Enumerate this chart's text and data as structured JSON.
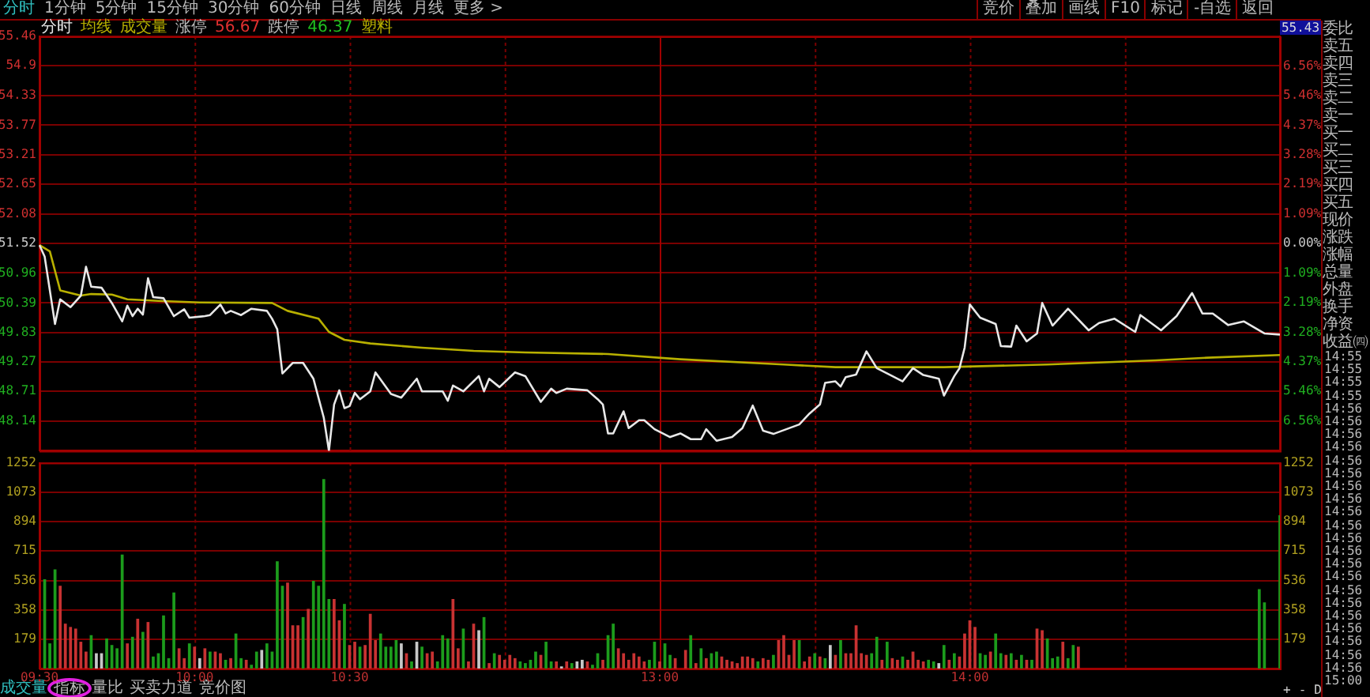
{
  "chart_data": [
    {
      "type": "line",
      "categories": [
        null,
        null,
        null,
        null,
        null,
        null,
        null,
        null,
        null,
        null,
        null,
        null,
        null,
        null,
        null,
        null,
        null,
        null,
        null,
        null,
        null,
        null,
        null,
        null,
        null,
        null,
        null,
        null,
        null,
        null,
        null,
        null,
        null,
        null,
        null,
        null,
        null,
        null,
        null,
        null,
        null,
        null,
        null,
        null,
        null,
        null,
        null,
        null,
        null,
        null,
        null,
        null,
        null,
        null,
        null,
        null,
        null,
        null,
        null,
        null,
        null,
        null,
        null,
        null,
        null,
        null,
        null,
        null,
        null,
        null,
        null,
        null,
        null,
        null,
        null,
        null,
        null,
        null,
        null,
        null,
        null,
        null,
        null,
        null,
        null,
        null,
        null,
        null,
        null,
        null,
        null,
        null,
        null,
        null,
        null,
        null,
        null,
        null,
        null,
        null,
        null,
        null,
        null,
        null,
        null,
        null,
        null,
        null,
        null,
        null,
        null,
        null,
        null,
        null,
        null,
        null,
        null,
        null,
        null,
        null,
        null,
        null,
        null,
        null,
        null,
        null,
        null,
        null,
        null,
        null,
        null,
        null,
        null,
        null,
        null,
        null,
        null,
        null,
        null,
        null,
        null,
        null,
        null,
        null,
        null,
        null,
        null,
        null,
        null,
        null,
        null,
        null,
        null,
        null,
        null,
        null,
        null,
        null,
        null,
        null,
        null,
        null,
        null,
        null,
        null,
        null,
        null,
        null,
        null,
        null,
        null,
        null,
        null,
        null,
        null,
        null,
        null,
        null,
        null,
        null,
        null,
        null,
        null,
        null,
        null,
        null,
        null,
        null,
        null,
        null,
        null,
        null,
        null,
        null,
        null,
        null,
        null,
        null,
        null,
        null,
        null,
        null,
        null,
        null,
        null,
        null,
        null,
        null,
        null,
        null,
        null,
        null,
        null,
        null,
        null,
        null,
        null,
        null,
        null,
        null,
        null,
        null,
        null,
        null,
        null,
        null,
        null,
        null,
        null,
        null,
        null,
        null,
        null,
        null,
        null,
        null,
        null,
        null,
        null,
        null,
        null
      ],
      "ylim": [
        47.58,
        55.46
      ],
      "yticks": [
        48.14,
        48.71,
        49.27,
        49.83,
        50.39,
        50.96,
        51.52,
        52.08,
        52.65,
        53.21,
        53.77,
        54.33,
        54.9,
        55.46
      ],
      "y2lim": [
        -7.65,
        7.65
      ],
      "y2ticks": [
        {
          "value": -6.56,
          "label": "6.56%"
        },
        {
          "value": -5.46,
          "label": "5.46%"
        },
        {
          "value": -4.37,
          "label": "4.37%"
        },
        {
          "value": -3.28,
          "label": "3.28%"
        },
        {
          "value": -2.19,
          "label": "2.19%"
        },
        {
          "value": -1.09,
          "label": "1.09%"
        },
        {
          "value": 0,
          "label": "0.00%"
        },
        {
          "value": 1.09,
          "label": "1.09%"
        },
        {
          "value": 2.19,
          "label": "2.19%"
        },
        {
          "value": 3.28,
          "label": "3.28%"
        },
        {
          "value": 4.37,
          "label": "4.37%"
        },
        {
          "value": 5.46,
          "label": "5.46%"
        },
        {
          "value": 6.56,
          "label": "6.56%"
        }
      ],
      "tick_labels": "y",
      "grid": true,
      "legend": "top left",
      "series": [
        {
          "name": "分时",
          "color": "#e8e8e8",
          "values": [
            51.49,
            51.27,
            null,
            49.99,
            50.46,
            null,
            50.31,
            null,
            50.53,
            51.08,
            50.7,
            null,
            50.68,
            null,
            50.39,
            null,
            50.04,
            50.34,
            50.14,
            50.28,
            50.17,
            50.86,
            50.5,
            null,
            50.48,
            null,
            50.14,
            null,
            50.27,
            50.11,
            null,
            null,
            50.14,
            50.16,
            null,
            50.36,
            50.19,
            50.24,
            null,
            50.16,
            null,
            50.28,
            null,
            null,
            50.24,
            50.09,
            49.89,
            49.05,
            null,
            49.25,
            null,
            49.25,
            null,
            48.95,
            null,
            48.21,
            47.58,
            48.46,
            48.73,
            48.39,
            48.43,
            48.68,
            48.56,
            null,
            48.71,
            49.07,
            null,
            null,
            48.66,
            null,
            48.59,
            null,
            null,
            48.95,
            48.71,
            null,
            null,
            null,
            48.71,
            48.53,
            48.82,
            null,
            48.71,
            null,
            null,
            49.0,
            48.71,
            48.95,
            null,
            48.79,
            null,
            null,
            49.07,
            null,
            49.0,
            null,
            null,
            48.51,
            null,
            48.76,
            48.68,
            null,
            48.76,
            null,
            null,
            null,
            48.73,
            null,
            48.56,
            48.46,
            47.91,
            47.91,
            null,
            48.33,
            48.01,
            null,
            48.16,
            48.16,
            null,
            47.99,
            null,
            null,
            47.84,
            null,
            47.91,
            null,
            47.8,
            null,
            47.8,
            47.99,
            null,
            47.77,
            null,
            null,
            47.84,
            null,
            48.01,
            null,
            48.44,
            null,
            47.96,
            null,
            47.9,
            null,
            null,
            null,
            null,
            48.08,
            null,
            48.29,
            null,
            48.46,
            48.87,
            null,
            48.9,
            48.8,
            48.98,
            null,
            49.03,
            null,
            49.47,
            null,
            49.15,
            null,
            null,
            49.0,
            null,
            48.9,
            null,
            49.15,
            null,
            49.02,
            null,
            null,
            48.95,
            48.63,
            null,
            49.0,
            49.15,
            49.54,
            50.36,
            null,
            50.11,
            null,
            null,
            49.99,
            49.57,
            null,
            49.56,
            49.96,
            null,
            49.66,
            null,
            49.81,
            50.39,
            null,
            49.96,
            null,
            null,
            50.28,
            null,
            null,
            null,
            49.87,
            null,
            50.01,
            null,
            null,
            50.09,
            null,
            null,
            null,
            49.84,
            50.16,
            null,
            null,
            null,
            49.87,
            null,
            null,
            50.14,
            null,
            null,
            50.58,
            null,
            50.19,
            null,
            50.19,
            null,
            null,
            49.97,
            null,
            null,
            50.04,
            null,
            null,
            null,
            49.81,
            null,
            null,
            49.79
          ]
        },
        {
          "name": "均线",
          "color": "#b8b000",
          "values": [
            51.49,
            null,
            51.37,
            null,
            50.63,
            null,
            null,
            null,
            50.53,
            null,
            50.56,
            null,
            null,
            null,
            50.55,
            null,
            null,
            50.46,
            null,
            null,
            null,
            null,
            null,
            50.43,
            null,
            null,
            null,
            null,
            null,
            null,
            null,
            50.4,
            null,
            null,
            null,
            null,
            null,
            null,
            null,
            null,
            null,
            null,
            null,
            null,
            null,
            50.39,
            null,
            null,
            50.24,
            null,
            null,
            null,
            null,
            null,
            50.09,
            null,
            49.84,
            null,
            null,
            49.69,
            null,
            null,
            null,
            null,
            49.62,
            null,
            null,
            null,
            null,
            null,
            null,
            null,
            null,
            null,
            49.54,
            null,
            null,
            null,
            null,
            null,
            null,
            null,
            null,
            null,
            49.48,
            null,
            null,
            null,
            null,
            null,
            null,
            null,
            null,
            null,
            49.45,
            null,
            null,
            null,
            null,
            null,
            null,
            null,
            null,
            null,
            null,
            null,
            null,
            null,
            null,
            null,
            49.42,
            null,
            null,
            null,
            null,
            null,
            null,
            null,
            null,
            null,
            null,
            null,
            null,
            null,
            49.32,
            null,
            null,
            null,
            null,
            null,
            null,
            null,
            null,
            null,
            null,
            null,
            null,
            null,
            null,
            null,
            null,
            null,
            null,
            null,
            49.22,
            null,
            null,
            null,
            null,
            null,
            null,
            null,
            null,
            null,
            49.17,
            null,
            null,
            null,
            null,
            null,
            null,
            null,
            null,
            null,
            null,
            null,
            null,
            null,
            null,
            null,
            null,
            null,
            null,
            null,
            null,
            49.17,
            null,
            null,
            null,
            null,
            null,
            null,
            null,
            null,
            null,
            null,
            null,
            null,
            null,
            null,
            null,
            null,
            null,
            null,
            null,
            49.22,
            null,
            null,
            null,
            null,
            null,
            null,
            null,
            null,
            null,
            null,
            null,
            null,
            null,
            null,
            null,
            null,
            null,
            null,
            null,
            null,
            49.3,
            null,
            null,
            null,
            null,
            null,
            null,
            null,
            null,
            null,
            49.35,
            null,
            null,
            null,
            null,
            null,
            null,
            null,
            null,
            null,
            null,
            null,
            null,
            null,
            49.4
          ]
        }
      ],
      "annotations": [
        "分时",
        "1分钟",
        "5分钟",
        "15分钟",
        "30分钟",
        "60分钟",
        "日线",
        "周线",
        "月线",
        "更多 >",
        "竞价",
        "叠加",
        "画线",
        "F10",
        "标记",
        "-自选",
        "返回",
        "成交量",
        "涨停",
        "56.67",
        "跌停",
        "46.37",
        "塑料",
        "55.43",
        "委比",
        "卖五",
        "卖四",
        "卖三",
        "卖二",
        "卖一",
        "买一",
        "买二",
        "买三",
        "买四",
        "买五",
        "现价",
        "涨跌",
        "涨幅",
        "总量",
        "外盘",
        "换手",
        "净资",
        "收益㈣",
        "14:55",
        "14:55",
        "14:55",
        "14:55",
        "14:56",
        "14:56",
        "14:56",
        "14:56",
        "14:56",
        "14:56",
        "14:56",
        "14:56",
        "14:56",
        "14:56",
        "14:56",
        "14:56",
        "14:56",
        "14:56",
        "14:56",
        "14:56",
        "14:56",
        "14:56",
        "14:56",
        "14:56",
        "14:56",
        "15:00",
        "成交量",
        "指标",
        "量比",
        "买卖力道",
        "竞价图",
        "+",
        "-",
        "D"
      ]
    },
    {
      "type": "bar",
      "categories": [
        "09:30",
        null,
        null,
        null,
        null,
        null,
        null,
        null,
        null,
        null,
        null,
        null,
        null,
        null,
        null,
        null,
        null,
        null,
        null,
        null,
        null,
        null,
        null,
        null,
        null,
        null,
        null,
        null,
        null,
        null,
        "10:00",
        null,
        null,
        null,
        null,
        null,
        null,
        null,
        null,
        null,
        null,
        null,
        null,
        null,
        null,
        null,
        null,
        null,
        null,
        null,
        null,
        null,
        null,
        null,
        null,
        null,
        null,
        null,
        null,
        null,
        "10:30",
        null,
        null,
        null,
        null,
        null,
        null,
        null,
        null,
        null,
        null,
        null,
        null,
        null,
        null,
        null,
        null,
        null,
        null,
        null,
        null,
        null,
        null,
        null,
        null,
        null,
        null,
        null,
        null,
        null,
        null,
        null,
        null,
        null,
        null,
        null,
        null,
        null,
        null,
        null,
        null,
        null,
        null,
        null,
        null,
        null,
        null,
        null,
        null,
        null,
        null,
        null,
        null,
        null,
        null,
        null,
        null,
        null,
        null,
        null,
        "13:00",
        null,
        null,
        null,
        null,
        null,
        null,
        null,
        null,
        null,
        null,
        null,
        null,
        null,
        null,
        null,
        null,
        null,
        null,
        null,
        null,
        null,
        null,
        null,
        null,
        null,
        null,
        null,
        null,
        null,
        null,
        null,
        null,
        null,
        null,
        null,
        null,
        null,
        null,
        null,
        null,
        null,
        null,
        null,
        null,
        null,
        null,
        null,
        null,
        null,
        null,
        null,
        null,
        null,
        null,
        null,
        null,
        null,
        null,
        null,
        "14:00",
        null,
        null,
        null,
        null,
        null,
        null,
        null,
        null,
        null,
        null,
        null,
        null,
        null,
        null,
        null,
        null,
        null,
        null,
        null,
        null,
        null,
        null,
        null,
        null,
        null,
        null,
        null,
        null,
        null,
        null,
        null,
        null,
        null,
        null,
        null,
        null,
        null,
        null,
        null,
        null,
        null,
        null,
        null,
        null,
        null,
        null,
        null,
        null,
        null,
        null,
        null,
        null,
        null,
        null,
        null,
        null,
        null,
        null,
        null,
        null
      ],
      "ylim": [
        0,
        1252
      ],
      "yticks": [
        179,
        358,
        536,
        715,
        894,
        1073,
        1252
      ],
      "y2lim": [
        0,
        1252
      ],
      "y2ticks": [
        179,
        358,
        536,
        715,
        894,
        1073,
        1252
      ],
      "grid": true,
      "values": [
        null,
        540,
        150,
        600,
        500,
        270,
        250,
        240,
        160,
        100,
        200,
        90,
        90,
        180,
        140,
        120,
        690,
        150,
        190,
        300,
        220,
        280,
        70,
        90,
        320,
        60,
        460,
        120,
        60,
        150,
        130,
        60,
        120,
        100,
        100,
        90,
        50,
        60,
        210,
        60,
        50,
        20,
        100,
        110,
        150,
        100,
        650,
        500,
        520,
        260,
        260,
        310,
        360,
        530,
        500,
        1150,
        420,
        420,
        290,
        390,
        140,
        160,
        130,
        140,
        330,
        170,
        210,
        130,
        130,
        170,
        150,
        90,
        40,
        160,
        130,
        90,
        100,
        40,
        200,
        180,
        420,
        120,
        240,
        40,
        270,
        230,
        310,
        30,
        90,
        80,
        50,
        80,
        60,
        40,
        30,
        50,
        100,
        80,
        160,
        40,
        40,
        10,
        40,
        30,
        40,
        50,
        40,
        20,
        90,
        50,
        200,
        270,
        120,
        90,
        50,
        90,
        70,
        40,
        50,
        160,
        40,
        150,
        80,
        60,
        null,
        110,
        200,
        30,
        120,
        60,
        90,
        100,
        70,
        50,
        40,
        30,
        70,
        70,
        60,
        40,
        60,
        50,
        80,
        170,
        200,
        80,
        170,
        170,
        40,
        70,
        90,
        70,
        60,
        140,
        80,
        170,
        90,
        90,
        260,
        90,
        80,
        90,
        190,
        50,
        160,
        60,
        50,
        70,
        50,
        100,
        50,
        40,
        50,
        40,
        30,
        140,
        50,
        90,
        70,
        210,
        290,
        250,
        90,
        80,
        100,
        210,
        90,
        80,
        90,
        50,
        80,
        50,
        50,
        240,
        230,
        180,
        60,
        70,
        160,
        60,
        140,
        130,
        null,
        null,
        null,
        null,
        null,
        null,
        null,
        null,
        null,
        null,
        null,
        null,
        null,
        null,
        null,
        null,
        null,
        null,
        null,
        null,
        null,
        null,
        null,
        null,
        null,
        null,
        null,
        null,
        null,
        null,
        null,
        null,
        null,
        null,
        480,
        400,
        null,
        null,
        930
      ],
      "colors": [
        null,
        "#1c9c1c",
        "#1c9c1c",
        "#1c9c1c",
        "#c83232",
        "#c83232",
        "#c83232",
        "#c83232",
        "#c83232",
        "#c83232",
        "#1c9c1c",
        "#c8c8c8",
        "#c8c8c8",
        "#1c9c1c",
        "#1c9c1c",
        "#1c9c1c",
        "#1c9c1c",
        "#c83232",
        "#1c9c1c",
        "#c83232",
        "#1c9c1c",
        "#c83232",
        "#1c9c1c",
        "#1c9c1c",
        "#1c9c1c",
        "#1c9c1c",
        "#1c9c1c",
        "#c83232",
        "#c83232",
        "#1c9c1c",
        "#c83232",
        "#c8c8c8",
        "#c83232",
        "#1c9c1c",
        "#c83232",
        "#c83232",
        "#1c9c1c",
        "#c83232",
        "#1c9c1c",
        "#1c9c1c",
        "#c83232",
        "#1c9c1c",
        "#1c9c1c",
        "#c8c8c8",
        "#1c9c1c",
        "#1c9c1c",
        "#1c9c1c",
        "#1c9c1c",
        "#c83232",
        "#c83232",
        "#c83232",
        "#1c9c1c",
        "#c83232",
        "#1c9c1c",
        "#1c9c1c",
        "#1c9c1c",
        "#1c9c1c",
        "#c83232",
        "#c83232",
        "#1c9c1c",
        "#c83232",
        "#c83232",
        "#1c9c1c",
        "#c83232",
        "#c83232",
        "#c83232",
        "#1c9c1c",
        "#1c9c1c",
        "#1c9c1c",
        "#1c9c1c",
        "#c8c8c8",
        "#c83232",
        "#1c9c1c",
        "#c8c8c8",
        "#1c9c1c",
        "#c83232",
        "#c83232",
        "#1c9c1c",
        "#1c9c1c",
        "#1c9c1c",
        "#c83232",
        "#c83232",
        "#1c9c1c",
        "#c83232",
        "#c83232",
        "#c8c8c8",
        "#1c9c1c",
        "#c83232",
        "#1c9c1c",
        "#c83232",
        "#c83232",
        "#c83232",
        "#c83232",
        "#1c9c1c",
        "#1c9c1c",
        "#1c9c1c",
        "#1c9c1c",
        "#c83232",
        "#1c9c1c",
        "#1c9c1c",
        "#c83232",
        "#c8c8c8",
        "#c83232",
        "#1c9c1c",
        "#c8c8c8",
        "#c8c8c8",
        "#c83232",
        "#1c9c1c",
        "#1c9c1c",
        "#c83232",
        "#1c9c1c",
        "#1c9c1c",
        "#c83232",
        "#c83232",
        "#c83232",
        "#c83232",
        "#c83232",
        "#c83232",
        "#1c9c1c",
        "#1c9c1c",
        "#c83232",
        "#1c9c1c",
        "#1c9c1c",
        "#c83232",
        null,
        "#c83232",
        "#1c9c1c",
        "#c83232",
        "#1c9c1c",
        "#c83232",
        "#1c9c1c",
        "#1c9c1c",
        "#c83232",
        "#c83232",
        "#c83232",
        "#c83232",
        "#c83232",
        "#c83232",
        "#c83232",
        "#1c9c1c",
        "#c83232",
        "#c83232",
        "#1c9c1c",
        "#c83232",
        "#c83232",
        "#c83232",
        "#c83232",
        "#1c9c1c",
        "#c83232",
        "#c83232",
        "#1c9c1c",
        "#c83232",
        "#1c9c1c",
        "#c8c8c8",
        "#c83232",
        "#1c9c1c",
        "#c83232",
        "#c83232",
        "#c83232",
        "#c83232",
        "#c83232",
        "#1c9c1c",
        "#1c9c1c",
        "#c83232",
        "#1c9c1c",
        "#c83232",
        "#c83232",
        "#1c9c1c",
        "#c83232",
        "#c83232",
        "#c83232",
        "#c83232",
        "#1c9c1c",
        "#1c9c1c",
        "#c8c8c8",
        "#1c9c1c",
        "#c83232",
        "#1c9c1c",
        "#c83232",
        "#c83232",
        "#c83232",
        "#c83232",
        "#1c9c1c",
        "#1c9c1c",
        "#c83232",
        "#1c9c1c",
        "#1c9c1c",
        "#c83232",
        "#1c9c1c",
        "#c83232",
        "#1c9c1c",
        "#c83232",
        "#1c9c1c",
        "#c83232",
        "#c83232",
        "#1c9c1c",
        "#1c9c1c",
        "#1c9c1c",
        "#c83232",
        "#1c9c1c",
        "#1c9c1c",
        "#c83232",
        null,
        null,
        null,
        null,
        null,
        null,
        null,
        null,
        null,
        null,
        null,
        null,
        null,
        null,
        null,
        null,
        null,
        null,
        null,
        null,
        null,
        null,
        null,
        null,
        null,
        null,
        null,
        null,
        null,
        null,
        null,
        null,
        null,
        null,
        "#1c9c1c",
        "#1c9c1c",
        null,
        null,
        "#1c9c1c"
      ]
    }
  ]
}
